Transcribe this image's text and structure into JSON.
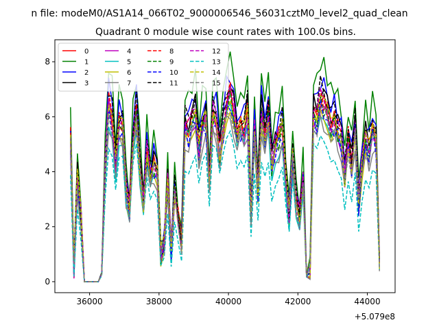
{
  "chart_data": {
    "type": "line",
    "suptitle": "n file: modeM0/AS1A14_066T02_9000006546_56031cztM0_level2_quad_clean",
    "title": "Quadrant 0 module wise count rates with 100.0s bins.",
    "xlabel": "",
    "ylabel": "",
    "x_offset_label": "+5.079e8",
    "xlim": [
      35000,
      44800
    ],
    "ylim": [
      -0.4,
      8.8
    ],
    "x_ticks": [
      36000,
      38000,
      40000,
      42000,
      44000
    ],
    "x_tick_labels": [
      "36000",
      "38000",
      "40000",
      "42000",
      "44000"
    ],
    "y_ticks": [
      0,
      2,
      4,
      6,
      8
    ],
    "y_tick_labels": [
      "0",
      "2",
      "4",
      "6",
      "8"
    ],
    "x": [
      35450,
      35550,
      35650,
      35750,
      35850,
      35950,
      36050,
      36150,
      36250,
      36350,
      36450,
      36550,
      36650,
      36750,
      36850,
      36950,
      37050,
      37150,
      37250,
      37350,
      37450,
      37550,
      37650,
      37750,
      37850,
      37950,
      38050,
      38150,
      38250,
      38350,
      38450,
      38550,
      38650,
      38750,
      38850,
      38950,
      39050,
      39150,
      39250,
      39350,
      39450,
      39550,
      39650,
      39750,
      39850,
      39950,
      40050,
      40150,
      40250,
      40350,
      40450,
      40550,
      40650,
      40750,
      40850,
      40950,
      41050,
      41150,
      41250,
      41350,
      41450,
      41550,
      41650,
      41750,
      41850,
      41950,
      42050,
      42150,
      42250,
      42350,
      42450,
      42550,
      42650,
      42750,
      42850,
      42950,
      43050,
      43150,
      43250,
      43350,
      43450,
      43550,
      43650,
      43750,
      43850,
      43950,
      44050,
      44150,
      44250,
      44350
    ],
    "base_profile": [
      5.5,
      0.5,
      4.0,
      2.5,
      0.0,
      0.0,
      0.0,
      0.0,
      0.0,
      0.3,
      4.5,
      6.8,
      6.3,
      4.5,
      6.0,
      6.0,
      3.5,
      2.8,
      5.5,
      6.5,
      4.5,
      3.0,
      5.0,
      4.0,
      4.5,
      4.2,
      1.0,
      1.5,
      3.8,
      1.2,
      3.5,
      2.5,
      1.5,
      6.0,
      5.8,
      6.2,
      6.5,
      5.0,
      6.0,
      6.3,
      3.5,
      6.5,
      6.3,
      5.0,
      6.0,
      6.8,
      7.2,
      6.5,
      5.5,
      6.0,
      5.8,
      6.5,
      2.5,
      5.8,
      3.5,
      6.5,
      5.8,
      6.5,
      4.5,
      5.2,
      5.5,
      6.0,
      4.0,
      2.5,
      5.0,
      3.0,
      2.5,
      4.0,
      0.2,
      0.5,
      6.5,
      6.3,
      7.0,
      6.8,
      6.5,
      6.0,
      6.2,
      5.8,
      5.5,
      4.0,
      5.5,
      4.5,
      6.0,
      3.0,
      4.5,
      5.5,
      5.0,
      5.8,
      5.5,
      0.5
    ],
    "series": [
      {
        "name": "0",
        "color": "#ff0000",
        "style": "solid",
        "scale": 0.95
      },
      {
        "name": "1",
        "color": "#008000",
        "style": "solid",
        "scale": 1.15
      },
      {
        "name": "2",
        "color": "#0000ff",
        "style": "solid",
        "scale": 1.05
      },
      {
        "name": "3",
        "color": "#000000",
        "style": "solid",
        "scale": 1.0
      },
      {
        "name": "4",
        "color": "#bf00bf",
        "style": "solid",
        "scale": 0.92
      },
      {
        "name": "5",
        "color": "#00bfbf",
        "style": "solid",
        "scale": 0.88
      },
      {
        "name": "6",
        "color": "#bfbf00",
        "style": "solid",
        "scale": 0.9
      },
      {
        "name": "7",
        "color": "#808080",
        "style": "solid",
        "scale": 0.85
      },
      {
        "name": "8",
        "color": "#ff0000",
        "style": "dashed",
        "scale": 0.97
      },
      {
        "name": "9",
        "color": "#008000",
        "style": "dashed",
        "scale": 0.93
      },
      {
        "name": "10",
        "color": "#0000ff",
        "style": "dashed",
        "scale": 0.9
      },
      {
        "name": "11",
        "color": "#000000",
        "style": "dashed",
        "scale": 1.02
      },
      {
        "name": "12",
        "color": "#bf00bf",
        "style": "dashed",
        "scale": 0.96
      },
      {
        "name": "13",
        "color": "#00bfbf",
        "style": "dashed",
        "scale": 0.72
      },
      {
        "name": "14",
        "color": "#bfbf00",
        "style": "dashed",
        "scale": 0.94
      },
      {
        "name": "15",
        "color": "#808080",
        "style": "dashed",
        "scale": 0.89
      }
    ],
    "legend": {
      "location": "top-left",
      "columns": 4
    }
  }
}
